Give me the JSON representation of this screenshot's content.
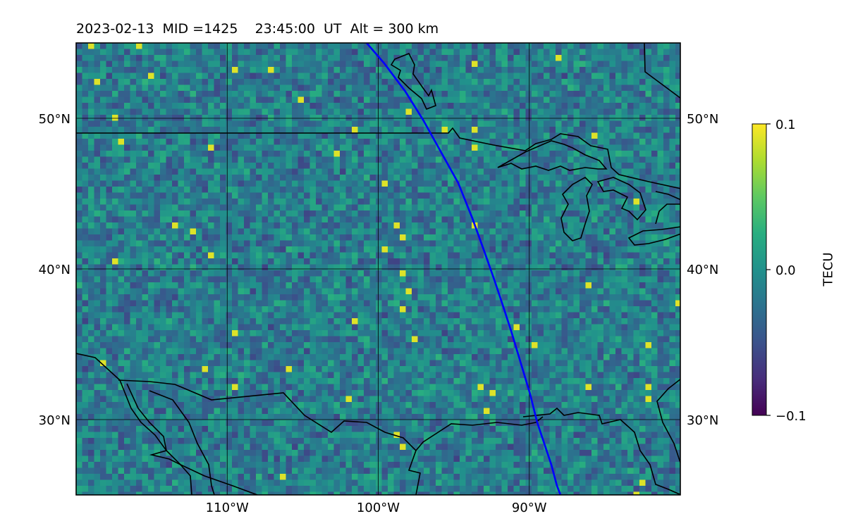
{
  "title": "2023-02-13  MID =1425    23:45:00  UT  Alt = 300 km",
  "map": {
    "lon_range": [
      -120,
      -80
    ],
    "lat_range": [
      25,
      55
    ],
    "lon_ticks": [
      {
        "value": -110,
        "label": "110°W"
      },
      {
        "value": -100,
        "label": "100°W"
      },
      {
        "value": -90,
        "label": "90°W"
      }
    ],
    "lat_ticks": [
      {
        "value": 50,
        "label": "50°N"
      },
      {
        "value": 40,
        "label": "40°N"
      },
      {
        "value": 30,
        "label": "30°N"
      }
    ],
    "gridlines": true,
    "colormap": "viridis",
    "track_color": "#0000ff",
    "coast_color": "#000000"
  },
  "colorbar": {
    "label": "TECU",
    "range": [
      -0.1,
      0.1
    ],
    "ticks": [
      {
        "value": 0.1,
        "label": "0.1"
      },
      {
        "value": 0.0,
        "label": "0.0"
      },
      {
        "value": -0.1,
        "label": "−0.1"
      }
    ]
  }
}
